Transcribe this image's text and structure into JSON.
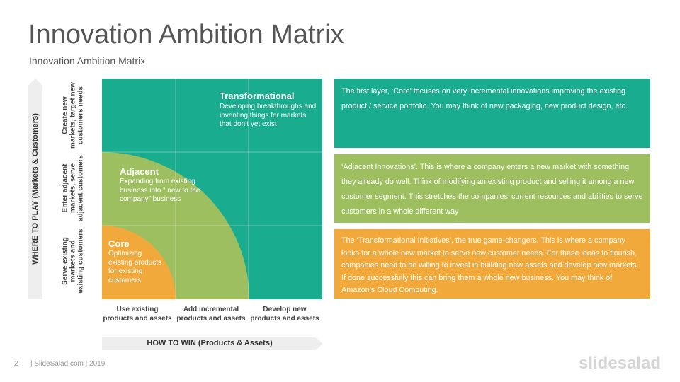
{
  "slide": {
    "title": "Innovation Ambition Matrix",
    "subtitle": "Innovation Ambition Matrix"
  },
  "y_axis": {
    "label": "WHERE TO PLAY (Markets & Customers)",
    "rows": [
      "Create new markets, target new customers needs",
      "Enter adjacent markets, serve adjacent customers",
      "Serve existing markets and existing customers"
    ]
  },
  "x_axis": {
    "label": "HOW TO WIN (Products & Assets)",
    "columns": [
      "Use existing products and assets",
      "Add incremental products and assets",
      "Develop new products and assets"
    ]
  },
  "zones": {
    "transformational": {
      "title": "Transformational",
      "desc": "Developing breakthroughs and inventing things for markets that don’t yet exist"
    },
    "adjacent": {
      "title": "Adjacent",
      "desc": "Expanding from existing business into “ new to the company” business"
    },
    "core": {
      "title": "Core",
      "desc": "Optimizing existing products for existing customers"
    }
  },
  "info_boxes": {
    "core": "The first layer, ‘Core’ focuses on very incremental innovations improving the existing product / service portfolio. You may think of new packaging, new product design, etc.",
    "adjacent": "‘Adjacent Innovations’. This is where a company enters a new market with something they already do well. Think of modifying an existing product and selling it among a new customer segment. This stretches the companies’ current resources and abilities to serve customers in a whole different way",
    "transformational": "The ‘Transformational Initiatives’, the true game-changers. This is where a company looks for a whole new market to serve new customer needs. For these ideas to flourish, companies need to be willing to invest in building new assets and develop new markets. If done successfully this can bring them a whole new business. You may think of Amazon’s Cloud Computing."
  },
  "colors": {
    "teal": "#1aac8e",
    "green": "#9ebf5f",
    "orange": "#f1a93c"
  },
  "footer": {
    "page_number": "2",
    "text": "| SlideSalad.com | 2019",
    "logo": "slidesalad"
  }
}
